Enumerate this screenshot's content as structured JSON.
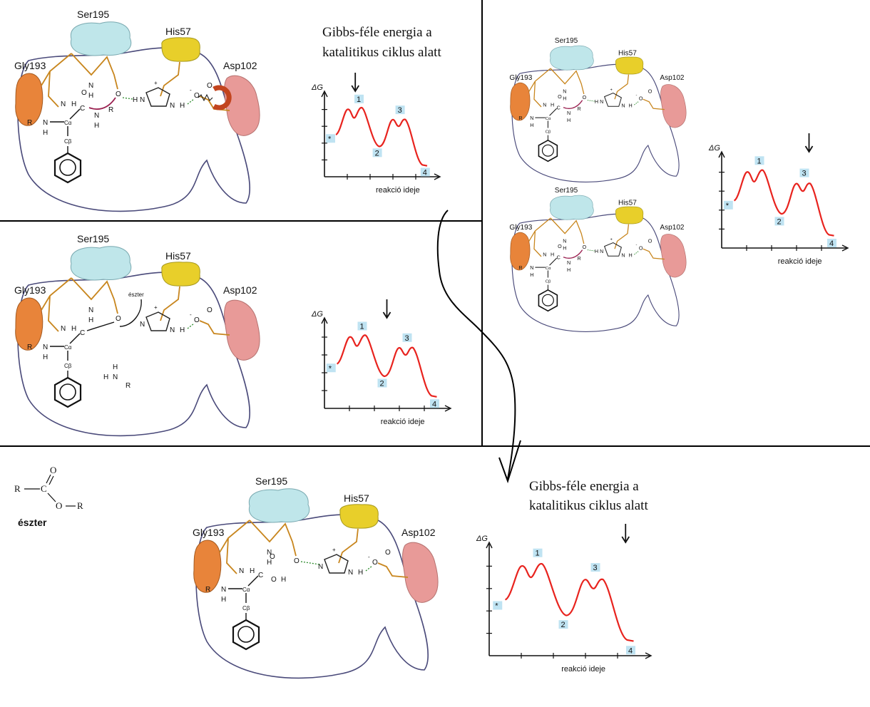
{
  "residues": {
    "ser": "Ser195",
    "his": "His57",
    "asp": "Asp102",
    "gly": "Gly193"
  },
  "energy_title": [
    "Gibbs-féle energia a",
    "katalitikus ciklus alatt"
  ],
  "graph": {
    "ylabel": "ΔG",
    "xlabel": "reakció ideje",
    "points": [
      "1",
      "2",
      "3",
      "4"
    ],
    "star": "*"
  },
  "ester_label": "észter",
  "ester_formula": {
    "R1": "R",
    "C": "C",
    "O_top": "O",
    "O_side": "O",
    "R2": "R"
  },
  "atoms": {
    "N": "N",
    "H": "H",
    "O": "O",
    "R": "R",
    "C": "C",
    "plus": "+",
    "minus": "-",
    "ca": "Cα",
    "cb": "Cβ"
  },
  "colors": {
    "enzyme_outline": "#4a4a7a",
    "ser": "#bfe6ea",
    "his": "#e8cf2a",
    "asp": "#e89a98",
    "gly": "#e8843a",
    "curve": "#e8231e",
    "label_box": "#bfe3f2",
    "chain": "#c8861e"
  }
}
